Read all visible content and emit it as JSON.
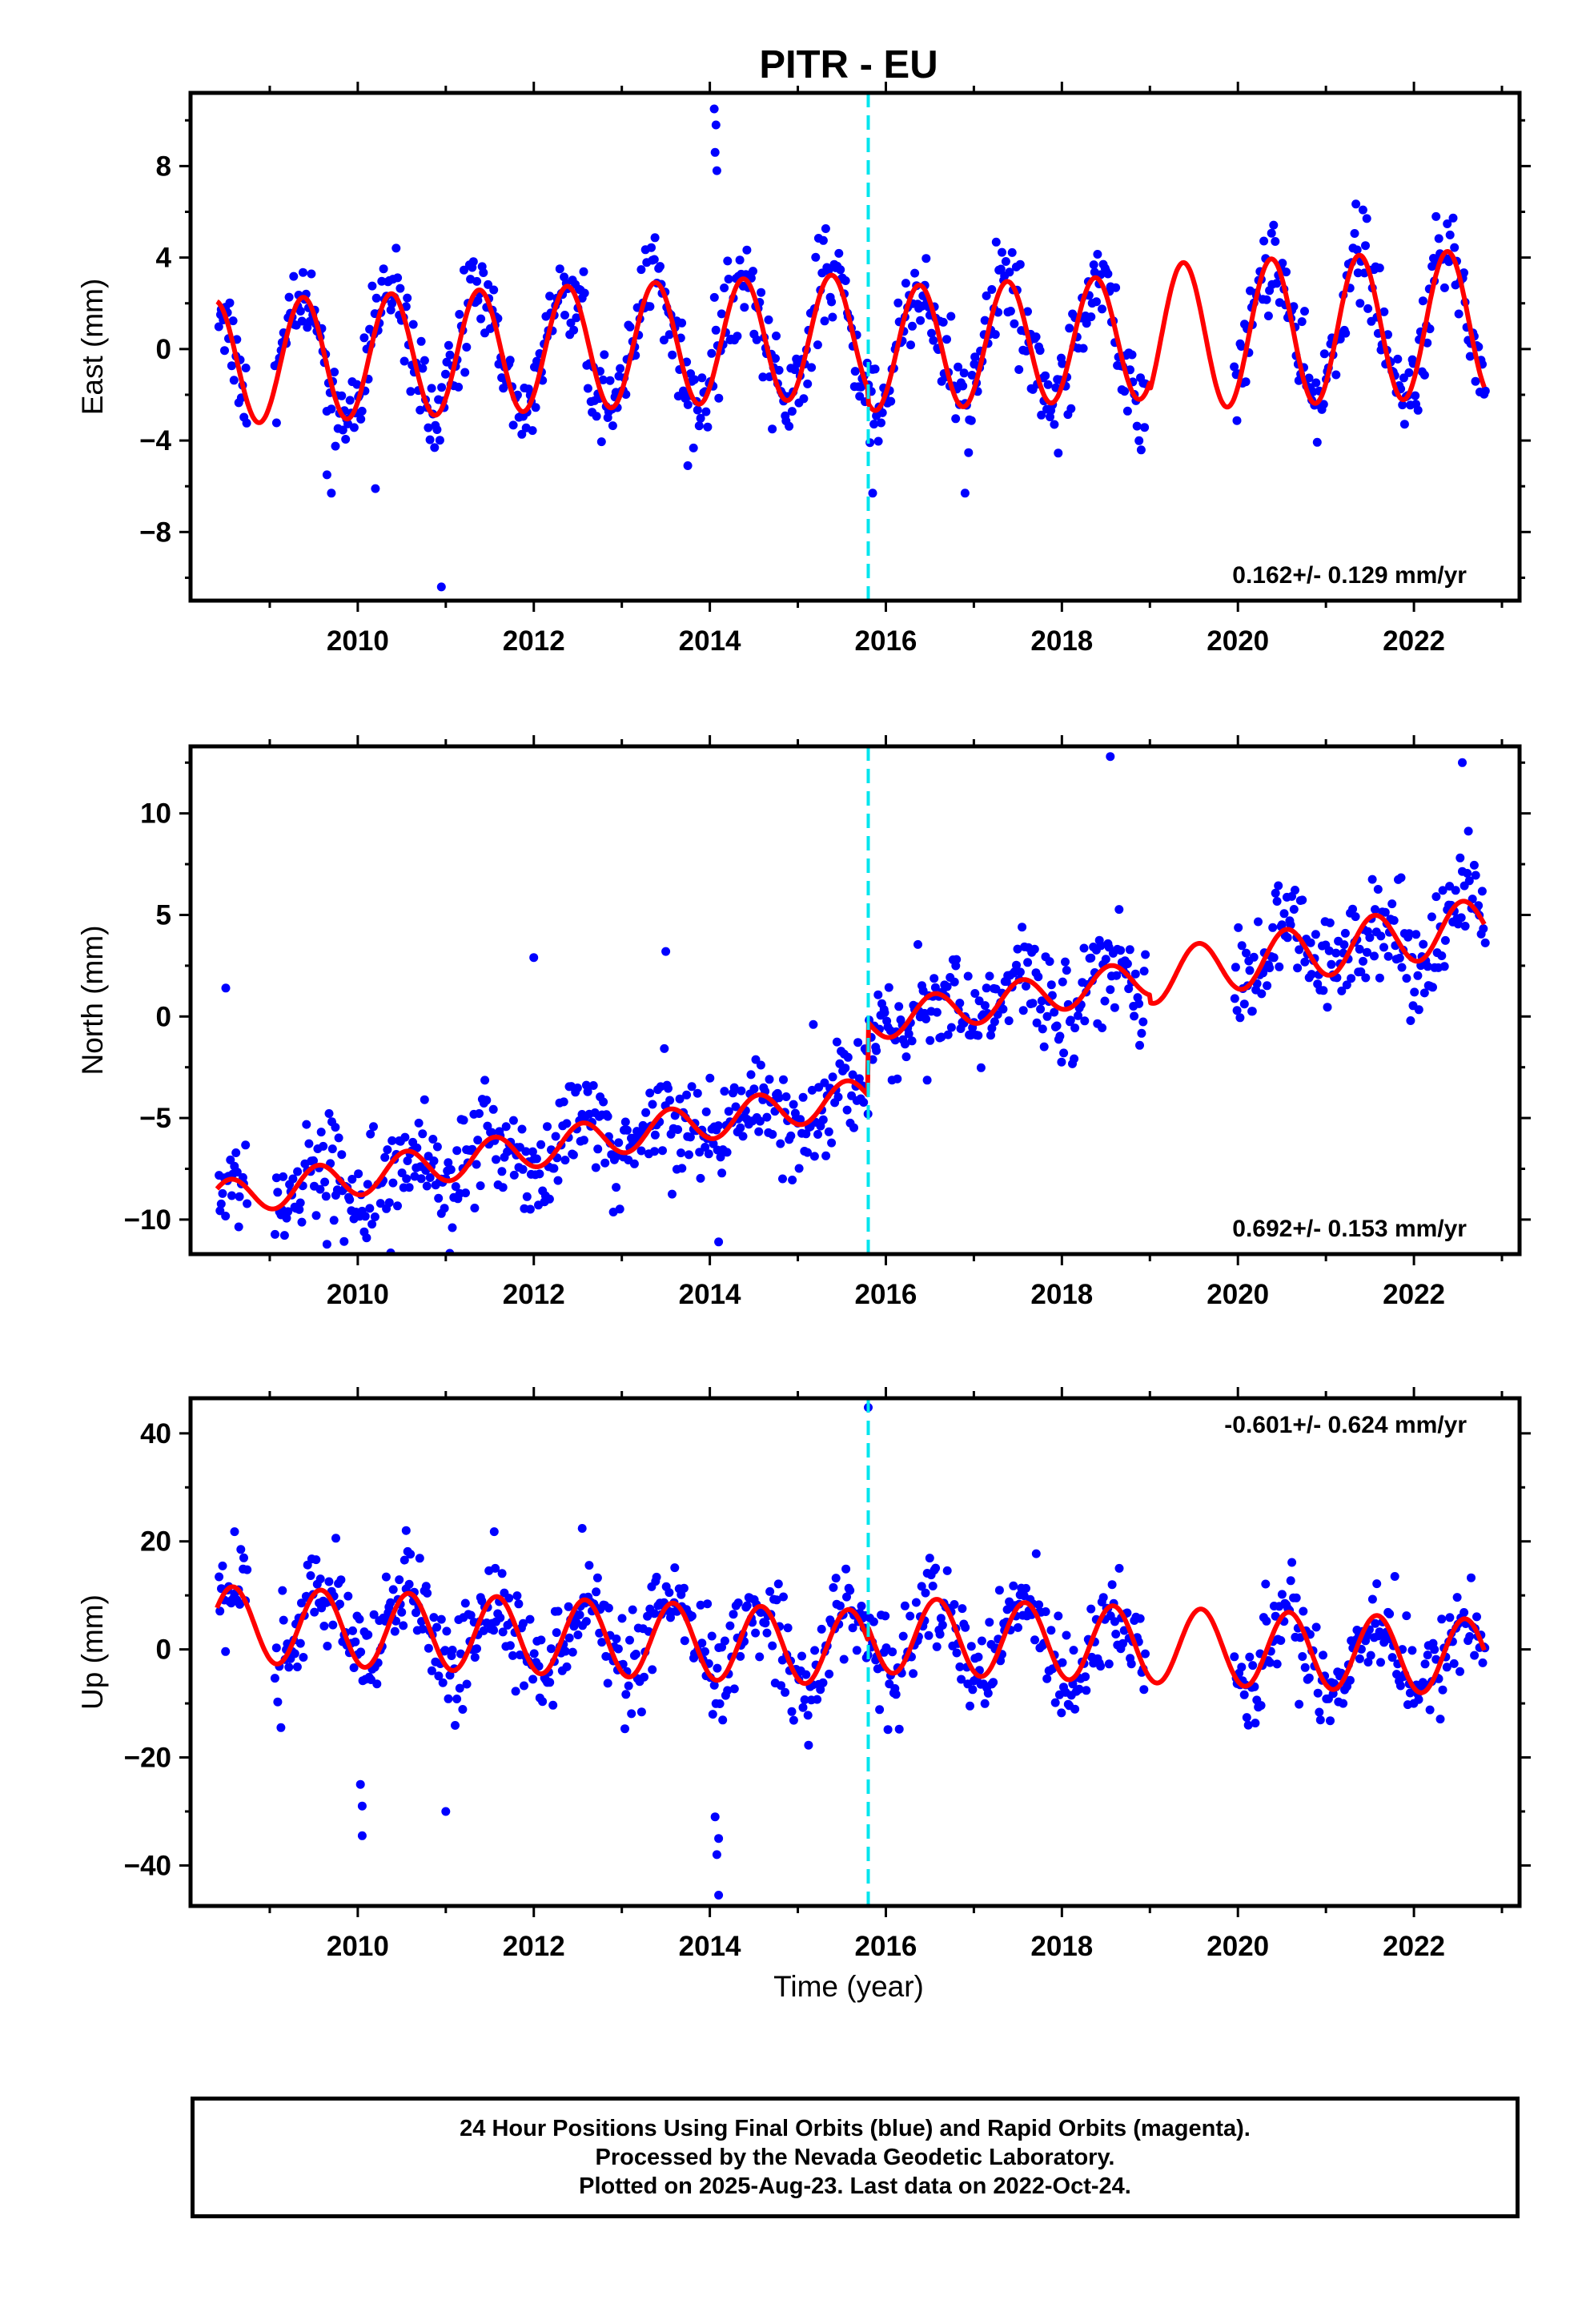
{
  "title": "PITR - EU",
  "xlabel": "Time (year)",
  "footer": {
    "line1": "24 Hour Positions Using Final Orbits (blue) and Rapid Orbits (magenta).",
    "line2": "Processed by the Nevada Geodetic Laboratory.",
    "line3": "Plotted on 2025-Aug-23. Last data on 2022-Oct-24."
  },
  "colors": {
    "points": "#0000ff",
    "model": "#ff0000",
    "step_line": "#00e5ee",
    "frame": "#000000"
  },
  "chart_data": [
    {
      "type": "scatter",
      "component": "East",
      "ylabel": "East (mm)",
      "rate_label": "0.162+/- 0.129 mm/yr",
      "rate_position": "bottom-right",
      "xlim": [
        2008.1,
        2023.2
      ],
      "ylim": [
        -11,
        11.2
      ],
      "yticks": [
        -8,
        -4,
        0,
        4,
        8
      ],
      "xticks": [
        2010,
        2012,
        2014,
        2016,
        2018,
        2020,
        2022
      ],
      "step_epoch": 2015.8,
      "model": {
        "offset": 0.3,
        "rate": 0.162,
        "step": -0.6,
        "annual_amplitude": 2.7,
        "annual_phase_peak": 0.38,
        "amplitude_growth_after_2019": 0.5
      },
      "data_gap": [
        2018.95,
        2019.95
      ],
      "scatter_noise_sd": 1.0,
      "outliers": [
        [
          2014.05,
          10.5
        ],
        [
          2014.07,
          9.8
        ],
        [
          2014.06,
          8.6
        ],
        [
          2014.08,
          7.8
        ],
        [
          2010.95,
          -10.4
        ],
        [
          2009.7,
          -6.3
        ],
        [
          2010.2,
          -6.1
        ],
        [
          2013.75,
          -5.1
        ],
        [
          2015.85,
          -6.3
        ],
        [
          2016.9,
          -6.3
        ],
        [
          2009.65,
          -5.5
        ]
      ]
    },
    {
      "type": "scatter",
      "component": "North",
      "ylabel": "North (mm)",
      "rate_label": "0.692+/- 0.153 mm/yr",
      "rate_position": "bottom-right",
      "xlim": [
        2008.1,
        2023.2
      ],
      "ylim": [
        -11.7,
        13.3
      ],
      "yticks": [
        -10,
        -5,
        0,
        5,
        10
      ],
      "xticks": [
        2010,
        2012,
        2014,
        2016,
        2018,
        2020,
        2022
      ],
      "step_epoch": 2015.8,
      "model": {
        "offset": -2.1,
        "rate": 0.692,
        "step": 3.6,
        "annual_amplitude": 0.9,
        "annual_phase_peak": 0.55,
        "amplitude_growth_after_2019": 0.4
      },
      "data_gap": [
        2018.95,
        2019.95
      ],
      "scatter_noise_sd": 1.3,
      "outliers": [
        [
          2018.55,
          12.8
        ],
        [
          2022.55,
          12.5
        ],
        [
          2014.1,
          -11.1
        ],
        [
          2010.95,
          -9.7
        ],
        [
          2009.75,
          -8.8
        ],
        [
          2013.5,
          3.2
        ],
        [
          2012.0,
          2.9
        ],
        [
          2008.5,
          1.4
        ]
      ]
    },
    {
      "type": "scatter",
      "component": "Up",
      "ylabel": "Up (mm)",
      "rate_label": "-0.601+/- 0.624 mm/yr",
      "rate_position": "top-right",
      "xlim": [
        2008.1,
        2023.2
      ],
      "ylim": [
        -47.5,
        46.5
      ],
      "yticks": [
        -40,
        -20,
        0,
        20,
        40
      ],
      "xticks": [
        2010,
        2012,
        2014,
        2016,
        2018,
        2020,
        2022
      ],
      "step_epoch": 2015.8,
      "model": {
        "offset": 1.5,
        "rate": -0.601,
        "step": 2.5,
        "annual_amplitude": 7.0,
        "annual_phase_peak": 0.58,
        "amplitude_growth_after_2019": 0.0
      },
      "data_gap": [
        2018.95,
        2019.95
      ],
      "scatter_noise_sd": 4.5,
      "outliers": [
        [
          2015.8,
          44.8
        ],
        [
          2014.1,
          -45.5
        ],
        [
          2014.08,
          -38
        ],
        [
          2014.1,
          -35
        ],
        [
          2014.06,
          -31
        ],
        [
          2010.05,
          -34.5
        ],
        [
          2010.05,
          -29
        ],
        [
          2010.03,
          -25
        ],
        [
          2011.0,
          -30
        ],
        [
          2012.55,
          22.4
        ],
        [
          2011.55,
          21.8
        ],
        [
          2010.55,
          22.0
        ],
        [
          2008.6,
          21.8
        ]
      ]
    }
  ]
}
